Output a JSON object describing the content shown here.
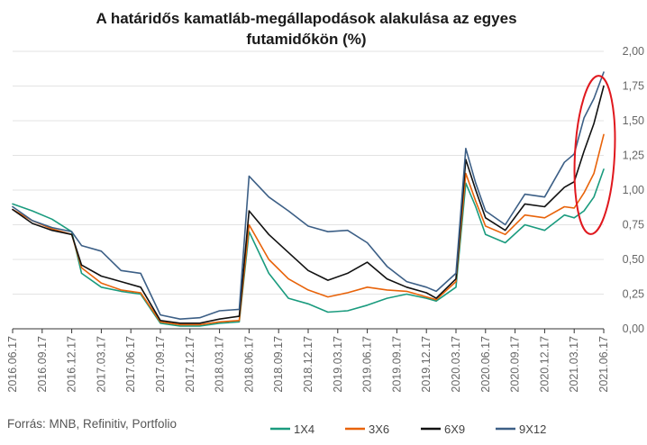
{
  "chart_data": {
    "type": "line",
    "title": "A határidős kamatláb-megállapodások alakulása az egyes futamidőkön (%)",
    "title_lines": [
      "A határidős kamatláb-megállapodások alakulása az egyes",
      "futamidőkön (%)"
    ],
    "source": "Forrás: MNB, Refinitiv, Portfolio",
    "x_tick_labels": [
      "2016.06.17",
      "2016.09.17",
      "2016.12.17",
      "2017.03.17",
      "2017.06.17",
      "2017.09.17",
      "2017.12.17",
      "2018.03.17",
      "2018.06.17",
      "2018.09.17",
      "2018.12.17",
      "2019.03.17",
      "2019.06.17",
      "2019.09.17",
      "2019.12.17",
      "2020.03.17",
      "2020.06.17",
      "2020.09.17",
      "2020.12.17",
      "2021.03.17",
      "2021.06.17"
    ],
    "y_tick_labels": [
      "0,00",
      "0,25",
      "0,50",
      "0,75",
      "1,00",
      "1,25",
      "1,50",
      "1,75",
      "2,00"
    ],
    "ylim": [
      0,
      2
    ],
    "y_axis_position": "right",
    "grid": true,
    "legend_position": "bottom",
    "highlight": "red ellipse around the final months (2021.03–2021.06)",
    "x": [
      "2016.06",
      "2016.08",
      "2016.10",
      "2016.12",
      "2017.01",
      "2017.03",
      "2017.05",
      "2017.07",
      "2017.09",
      "2017.11",
      "2018.01",
      "2018.03",
      "2018.05",
      "2018.06",
      "2018.08",
      "2018.10",
      "2018.12",
      "2019.02",
      "2019.04",
      "2019.06",
      "2019.08",
      "2019.10",
      "2019.12",
      "2020.01",
      "2020.03",
      "2020.04",
      "2020.05",
      "2020.06",
      "2020.08",
      "2020.10",
      "2020.12",
      "2021.02",
      "2021.03",
      "2021.04",
      "2021.05",
      "2021.06"
    ],
    "series": [
      {
        "name": "1X4",
        "color": "#1a9b7e",
        "values": [
          0.9,
          0.85,
          0.79,
          0.7,
          0.4,
          0.3,
          0.27,
          0.25,
          0.04,
          0.02,
          0.02,
          0.04,
          0.05,
          0.7,
          0.4,
          0.22,
          0.18,
          0.12,
          0.13,
          0.17,
          0.22,
          0.25,
          0.22,
          0.2,
          0.3,
          1.05,
          0.88,
          0.68,
          0.62,
          0.75,
          0.71,
          0.82,
          0.8,
          0.85,
          0.95,
          1.15
        ]
      },
      {
        "name": "3X6",
        "color": "#e8630a",
        "values": [
          0.86,
          0.78,
          0.72,
          0.68,
          0.44,
          0.33,
          0.28,
          0.26,
          0.05,
          0.03,
          0.03,
          0.05,
          0.06,
          0.75,
          0.5,
          0.36,
          0.28,
          0.23,
          0.26,
          0.3,
          0.28,
          0.27,
          0.23,
          0.21,
          0.34,
          1.12,
          0.92,
          0.74,
          0.68,
          0.82,
          0.8,
          0.88,
          0.87,
          0.98,
          1.12,
          1.4
        ]
      },
      {
        "name": "6X9",
        "color": "#111111",
        "values": [
          0.86,
          0.76,
          0.71,
          0.68,
          0.46,
          0.38,
          0.34,
          0.3,
          0.06,
          0.04,
          0.04,
          0.07,
          0.09,
          0.85,
          0.68,
          0.55,
          0.42,
          0.35,
          0.4,
          0.48,
          0.36,
          0.3,
          0.26,
          0.22,
          0.36,
          1.22,
          1.0,
          0.8,
          0.71,
          0.9,
          0.88,
          1.02,
          1.06,
          1.28,
          1.48,
          1.75
        ]
      },
      {
        "name": "9X12",
        "color": "#3c5f86",
        "values": [
          0.88,
          0.78,
          0.73,
          0.7,
          0.6,
          0.56,
          0.42,
          0.4,
          0.1,
          0.07,
          0.08,
          0.13,
          0.14,
          1.1,
          0.95,
          0.85,
          0.74,
          0.7,
          0.71,
          0.62,
          0.45,
          0.34,
          0.3,
          0.27,
          0.4,
          1.3,
          1.05,
          0.85,
          0.75,
          0.97,
          0.95,
          1.2,
          1.26,
          1.52,
          1.66,
          1.85
        ]
      }
    ]
  }
}
